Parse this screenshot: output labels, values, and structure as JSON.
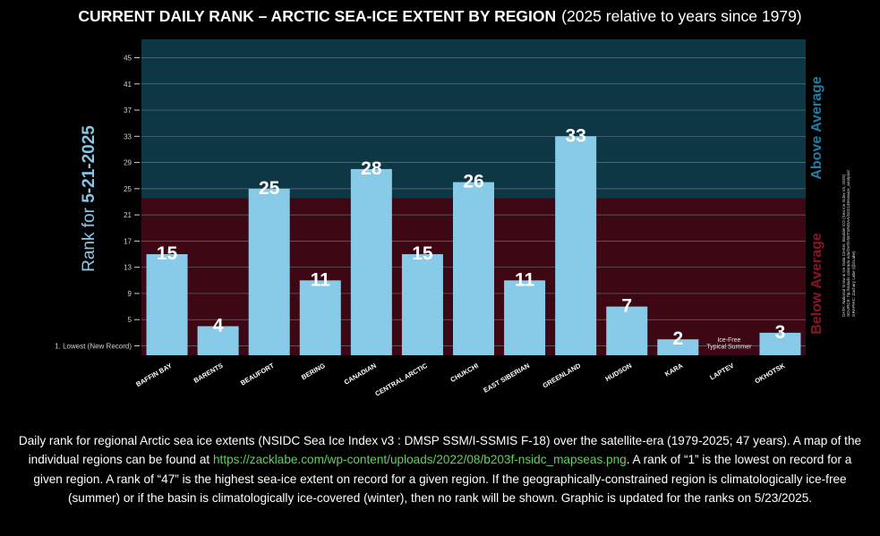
{
  "title": {
    "main": "CURRENT DAILY RANK – ARCTIC SEA-ICE EXTENT BY REGION",
    "sub": "(2025 relative to years since 1979)"
  },
  "side_labels": {
    "ylabel_prefix": "Rank for",
    "ylabel_date": "5-21-2025",
    "above": "Above Average",
    "below": "Below Average"
  },
  "credits": [
    "DATA: National Snow & Ice Data Center, Boulder CO (Sea Ice Index v3, 2025)",
    "SOURCE: ftp://sidads.colorado.edu/DATASETS/NOAA/G02135/seaice_analysis/",
    "GRAPHIC: Zachary Labe (@ZLabe)"
  ],
  "caption": {
    "part1": "Daily rank for regional Arctic sea ice extents (NSIDC Sea Ice Index v3 : DMSP SSM/I-SSMIS F-18) over the satellite-era (1979-2025; 47 years). A map of the individual regions can be found at ",
    "link": "https://zacklabe.com/wp-content/uploads/2022/08/b203f-nsidc_mapseas.png",
    "part2": ". A rank of “1” is the lowest on record for a given region. A rank of “47” is the highest sea-ice extent on record for a given region. If the geographically-constrained region is climatologically ice-free (summer) or if the basin is climatologically ice-covered (winter), then no rank will be shown. Graphic is updated for the ranks on 5/23/2025."
  },
  "colors": {
    "above_bg": "#0d3745",
    "below_bg": "#3d0814",
    "bar": "#87cbe8",
    "grid": "#7a8b93",
    "axis_text": "#cfcfcf"
  },
  "chart_data": {
    "type": "bar",
    "title": "CURRENT DAILY RANK – ARCTIC SEA-ICE EXTENT BY REGION",
    "subtitle": "(2025 relative to years since 1979)",
    "ylabel": "Rank for 5-21-2025",
    "xlabel": "",
    "categories": [
      "BAFFIN BAY",
      "BARENTS",
      "BEAUFORT",
      "BERING",
      "CANADIAN",
      "CENTRAL ARCTIC",
      "CHUKCHI",
      "EAST SIBERIAN",
      "GREENLAND",
      "HUDSON",
      "KARA",
      "LAPTEV",
      "OKHOTSK"
    ],
    "values": [
      15,
      4,
      25,
      11,
      28,
      15,
      26,
      11,
      33,
      7,
      2,
      null,
      3
    ],
    "ylim": [
      0,
      47
    ],
    "yticks": [
      1,
      5,
      9,
      13,
      17,
      21,
      25,
      29,
      33,
      37,
      41,
      45
    ],
    "ytick_labels": [
      "1. Lowest (New Record)",
      "5",
      "9",
      "13",
      "17",
      "21",
      "25",
      "29",
      "33",
      "37",
      "41",
      "45"
    ],
    "average_threshold": 23.5,
    "no_rank_note": {
      "category": "LAPTEV",
      "lines": [
        "Ice-Free",
        "Typical Summer"
      ]
    },
    "grid": true,
    "legend": "none"
  }
}
